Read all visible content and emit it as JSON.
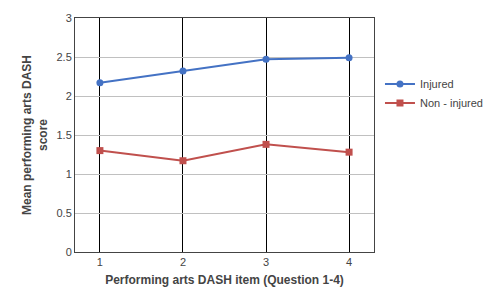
{
  "chart_data": {
    "type": "line",
    "x": [
      1,
      2,
      3,
      4
    ],
    "series": [
      {
        "name": "Injured",
        "color": "#4472C4",
        "marker": "circle",
        "values": [
          2.17,
          2.32,
          2.47,
          2.49
        ]
      },
      {
        "name": "Non - injured",
        "color": "#C0504D",
        "marker": "square",
        "values": [
          1.3,
          1.17,
          1.38,
          1.28
        ]
      }
    ],
    "xlabel": "Performing arts DASH item (Question 1-4)",
    "ylabel": "Mean performing arts DASH\nscore",
    "xlim": [
      0.7,
      4.3
    ],
    "xticks": [
      1,
      2,
      3,
      4
    ],
    "ylim": [
      0,
      3.0
    ],
    "yticks": [
      0,
      0.5,
      1,
      1.5,
      2,
      2.5,
      3
    ],
    "grid": true,
    "legend": "right"
  }
}
